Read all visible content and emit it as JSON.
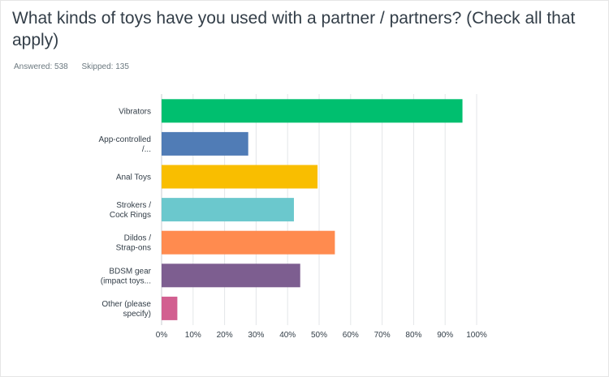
{
  "question": {
    "title": "What kinds of toys have you used with a partner / partners? (Check all that apply)"
  },
  "stats": {
    "answered": "Answered: 538",
    "skipped": "Skipped: 135"
  },
  "chart_data": {
    "type": "bar",
    "orientation": "horizontal",
    "categories": [
      [
        "Vibrators"
      ],
      [
        "App-controlled",
        "/..."
      ],
      [
        "Anal Toys"
      ],
      [
        "Strokers /",
        "Cock Rings"
      ],
      [
        "Dildos /",
        "Strap-ons"
      ],
      [
        "BDSM gear",
        "(impact toys..."
      ],
      [
        "Other (please",
        "specify)"
      ]
    ],
    "values": [
      95.5,
      27.5,
      49.5,
      42,
      55,
      44,
      5
    ],
    "colors": [
      "#00bf6f",
      "#507cb6",
      "#f9be00",
      "#6bc8cd",
      "#ff8b4f",
      "#7d5e90",
      "#d25f90"
    ],
    "xlim": [
      0,
      100
    ],
    "ticks": [
      "0%",
      "10%",
      "20%",
      "30%",
      "40%",
      "50%",
      "60%",
      "70%",
      "80%",
      "90%",
      "100%"
    ],
    "grid": true
  }
}
